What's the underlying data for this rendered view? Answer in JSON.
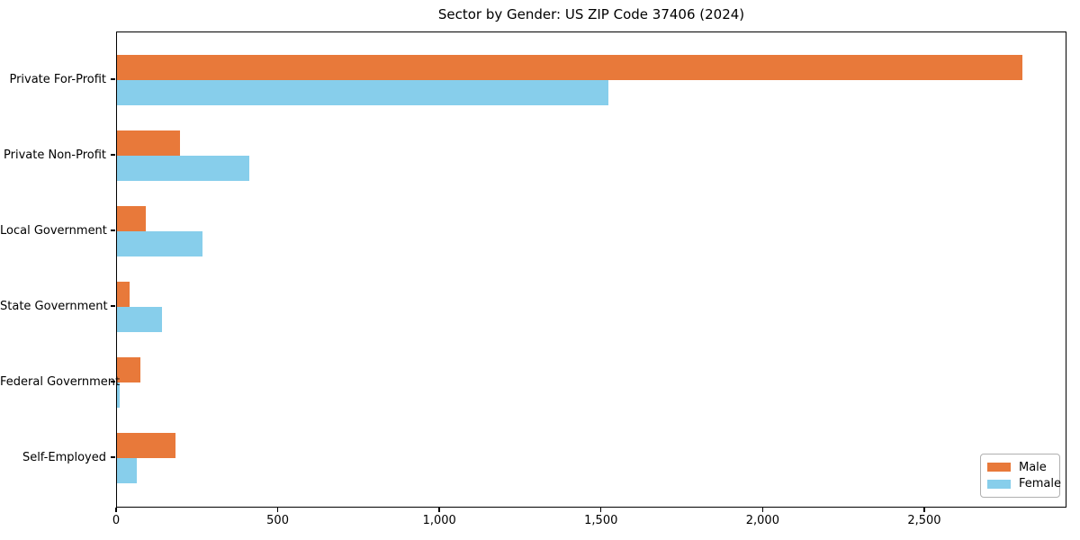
{
  "chart_data": {
    "type": "bar",
    "orientation": "horizontal",
    "title": "Sector by Gender: US ZIP Code 37406 (2024)",
    "categories": [
      "Private For-Profit",
      "Private Non-Profit",
      "Local Government",
      "State Government",
      "Federal Government",
      "Self-Employed"
    ],
    "series": [
      {
        "name": "Male",
        "color": "#e8793a",
        "values": [
          2800,
          196,
          90,
          40,
          73,
          182
        ]
      },
      {
        "name": "Female",
        "color": "#87ceeb",
        "values": [
          1520,
          410,
          265,
          140,
          7,
          62
        ]
      }
    ],
    "xlim": [
      0,
      2940
    ],
    "xticks": [
      {
        "value": 0,
        "label": "0"
      },
      {
        "value": 500,
        "label": "500"
      },
      {
        "value": 1000,
        "label": "1,000"
      },
      {
        "value": 1500,
        "label": "1,500"
      },
      {
        "value": 2000,
        "label": "2,000"
      },
      {
        "value": 2500,
        "label": "2,500"
      }
    ],
    "grid": false,
    "legend_position": "lower right"
  }
}
